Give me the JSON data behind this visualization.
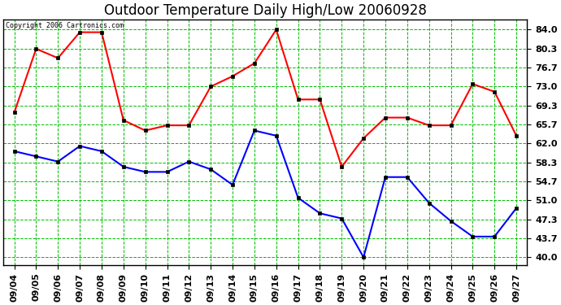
{
  "title": "Outdoor Temperature Daily High/Low 20060928",
  "copyright": "Copyright 2006 Cartronics.com",
  "x_labels": [
    "09/04",
    "09/05",
    "09/06",
    "09/07",
    "09/08",
    "09/09",
    "09/10",
    "09/11",
    "09/12",
    "09/13",
    "09/14",
    "09/15",
    "09/16",
    "09/17",
    "09/18",
    "09/19",
    "09/20",
    "09/21",
    "09/22",
    "09/23",
    "09/24",
    "09/25",
    "09/26",
    "09/27"
  ],
  "high_temps": [
    68.0,
    80.3,
    78.5,
    83.5,
    83.5,
    66.5,
    64.5,
    65.5,
    65.5,
    73.0,
    75.0,
    77.5,
    84.0,
    70.5,
    70.5,
    57.5,
    63.0,
    67.0,
    67.0,
    65.5,
    65.5,
    73.5,
    72.0,
    63.5
  ],
  "low_temps": [
    60.5,
    59.5,
    58.5,
    61.5,
    60.5,
    57.5,
    56.5,
    56.5,
    58.5,
    57.0,
    54.0,
    64.5,
    63.5,
    51.5,
    48.5,
    47.5,
    40.0,
    55.5,
    55.5,
    50.5,
    47.0,
    44.0,
    44.0,
    49.5
  ],
  "high_color": "#ff0000",
  "low_color": "#0000ff",
  "bg_color": "#ffffff",
  "plot_bg_color": "#ffffff",
  "grid_color": "#00bb00",
  "y_ticks": [
    40.0,
    43.7,
    47.3,
    51.0,
    54.7,
    58.3,
    62.0,
    65.7,
    69.3,
    73.0,
    76.7,
    80.3,
    84.0
  ],
  "y_min": 38.5,
  "y_max": 86.0,
  "title_fontsize": 12
}
